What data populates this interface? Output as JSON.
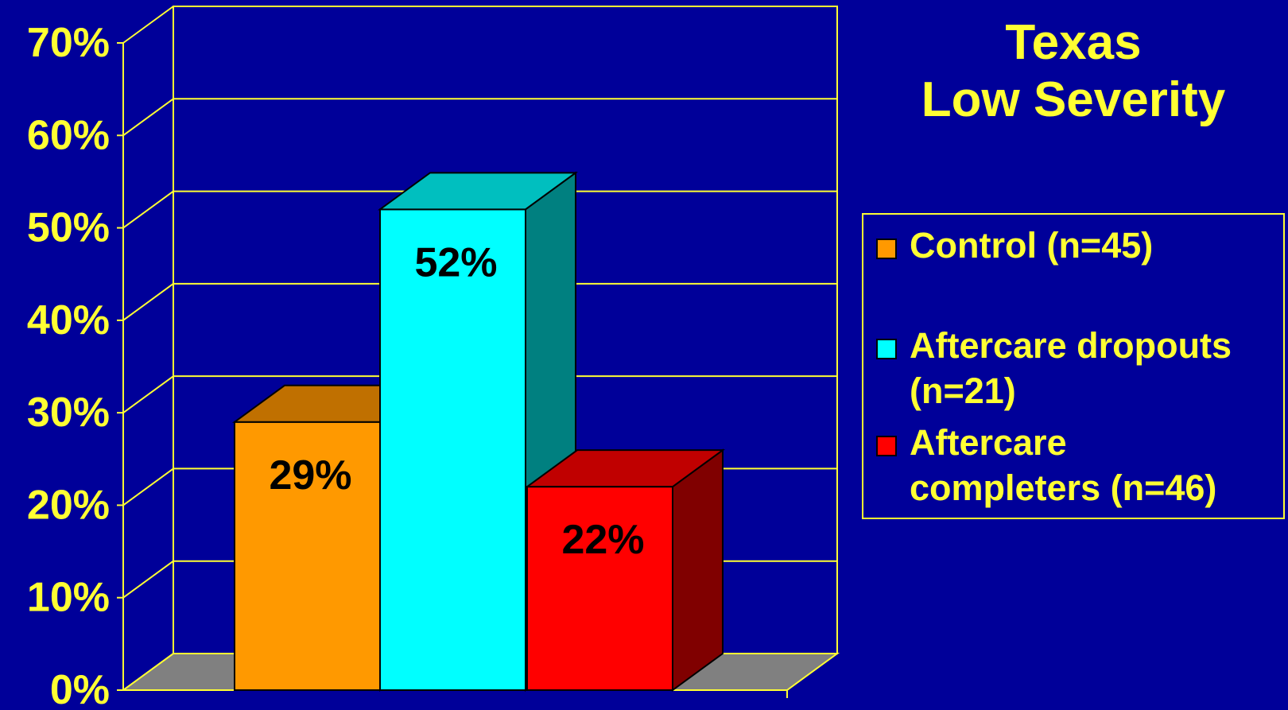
{
  "chart_data": {
    "type": "bar",
    "title": [
      "Texas",
      "Low Severity"
    ],
    "categories": [
      "Control (n=45)",
      "Aftercare dropouts (n=21)",
      "Aftercare completers (n=46)"
    ],
    "values": [
      29,
      52,
      22
    ],
    "data_labels": [
      "29%",
      "52%",
      "22%"
    ],
    "colors": [
      "#ff9900",
      "#00ffff",
      "#ff0000"
    ],
    "top_colors": [
      "#c07000",
      "#00bfbf",
      "#c00000"
    ],
    "side_colors": [
      "#7a4a00",
      "#008080",
      "#800000"
    ],
    "ylim": [
      0,
      70
    ],
    "yticks": [
      "0%",
      "10%",
      "20%",
      "30%",
      "40%",
      "50%",
      "60%",
      "70%"
    ],
    "grid": true,
    "legend_position": "right",
    "legend": [
      {
        "label": "Control (n=45)"
      },
      {
        "label": "Aftercare dropouts\n(n=21)"
      },
      {
        "label": "Aftercare\ncompleters (n=46)"
      }
    ]
  }
}
